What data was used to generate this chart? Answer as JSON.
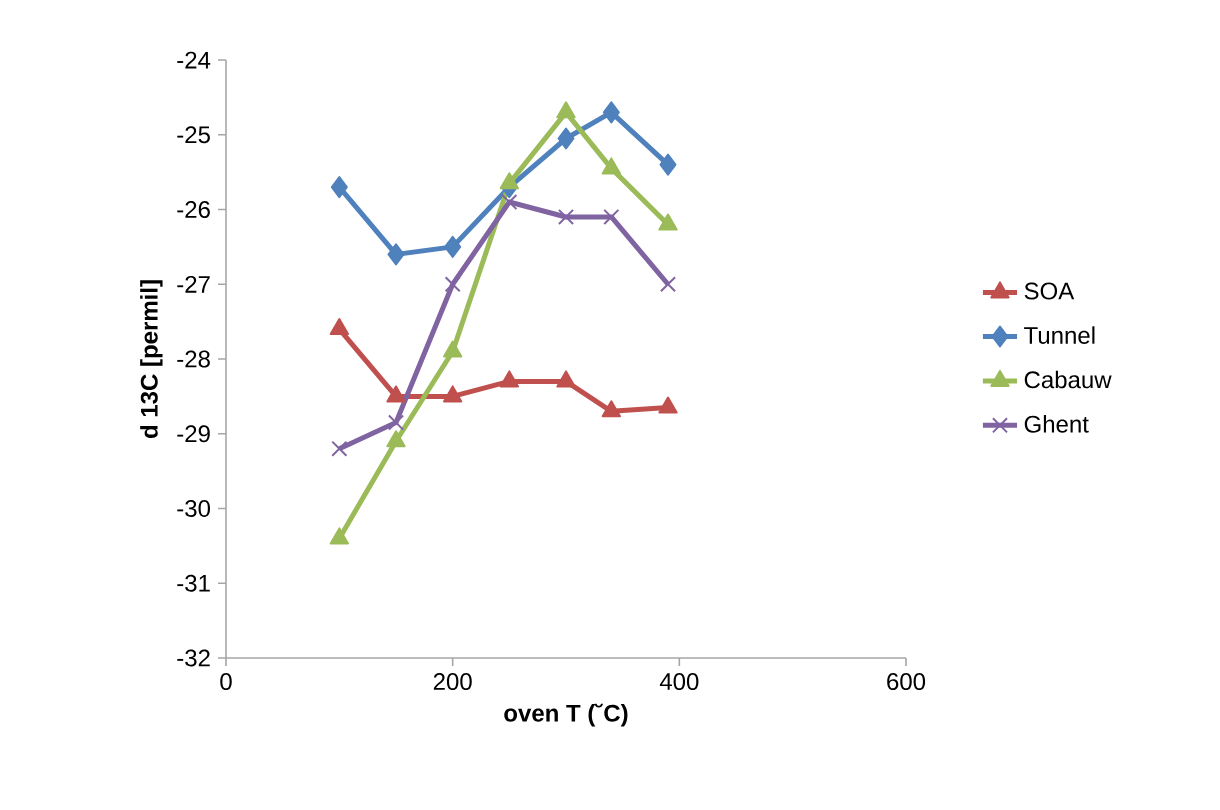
{
  "chart_data": {
    "type": "line",
    "xlabel": "oven T (˘C)",
    "ylabel": "d 13C [permil]",
    "x": [
      100,
      150,
      200,
      250,
      300,
      340,
      390
    ],
    "xlim": [
      0,
      600
    ],
    "xticks": [
      0,
      200,
      400,
      600
    ],
    "ylim": [
      -32,
      -24
    ],
    "yticks": [
      -32,
      -31,
      -30,
      -29,
      -28,
      -27,
      -26,
      -25,
      -24
    ],
    "grid": false,
    "legend": "right",
    "series": [
      {
        "name": "SOA",
        "color": "#c0504d",
        "marker": "triangle",
        "values": [
          -27.6,
          -28.5,
          -28.5,
          -28.3,
          -28.3,
          -28.7,
          -28.65
        ]
      },
      {
        "name": "Tunnel",
        "color": "#4f81bd",
        "marker": "diamond",
        "values": [
          -25.7,
          -26.6,
          -26.5,
          -25.7,
          -25.05,
          -24.7,
          -25.4
        ]
      },
      {
        "name": "Cabauw",
        "color": "#9bbb59",
        "marker": "triangle",
        "values": [
          -30.4,
          -29.1,
          -27.9,
          -25.65,
          -24.7,
          -25.45,
          -26.2
        ]
      },
      {
        "name": "Ghent",
        "color": "#8064a2",
        "marker": "cross",
        "values": [
          -29.2,
          -28.85,
          -27.0,
          -25.9,
          -26.1,
          -26.1,
          -27.0
        ]
      }
    ]
  }
}
